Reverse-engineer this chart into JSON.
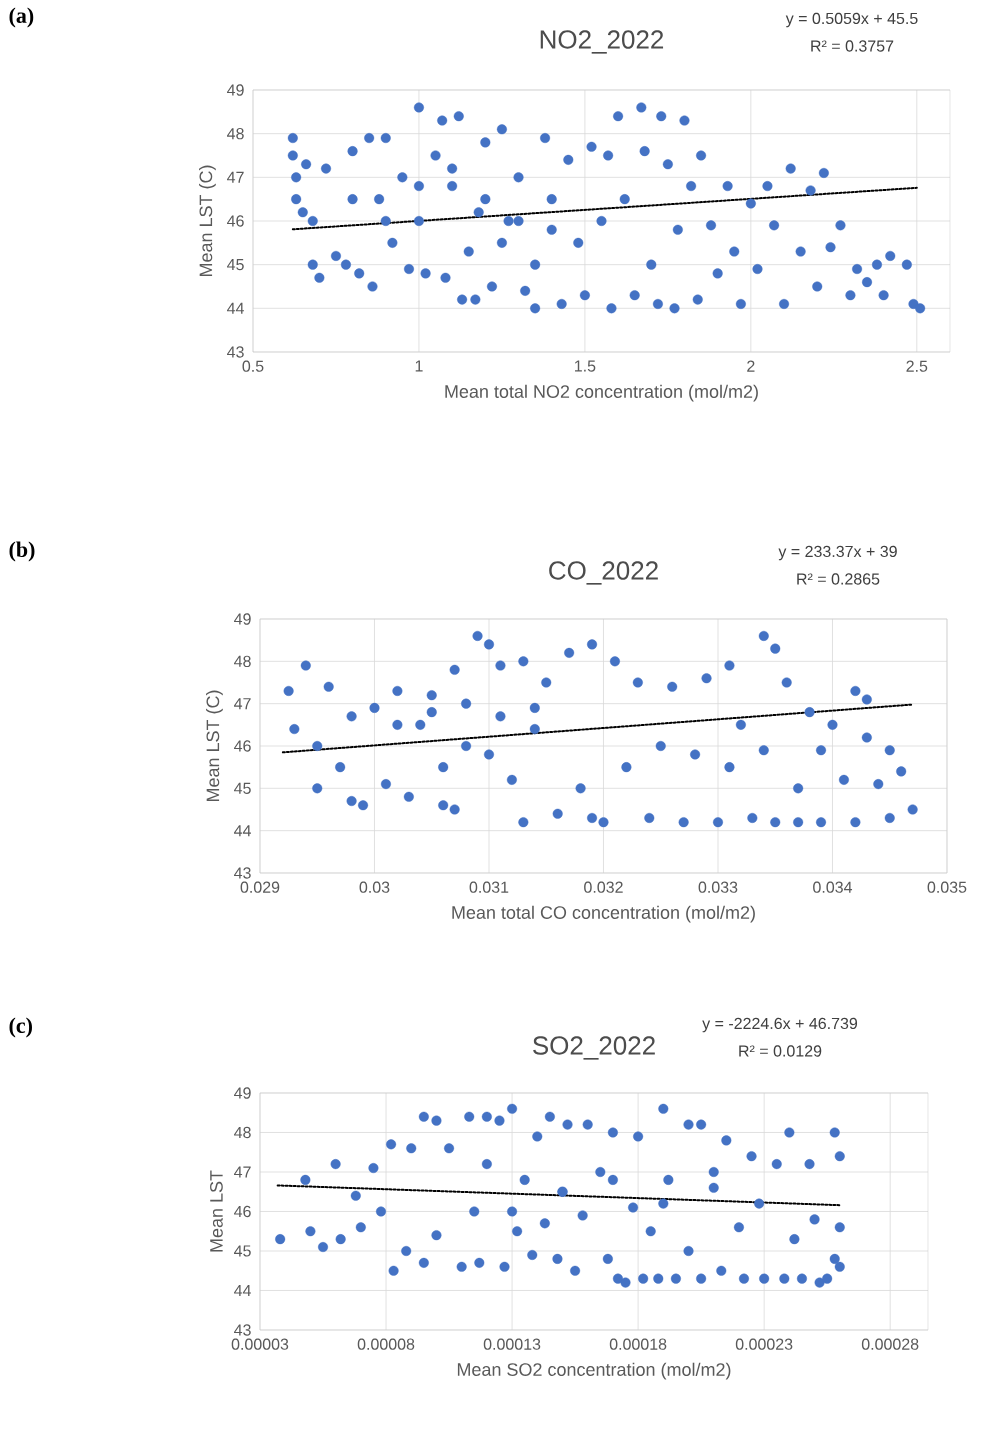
{
  "chart_data": [
    {
      "type": "scatter",
      "title": "NO2_2022",
      "xlabel": "Mean total NO2 concentration (mol/m2)",
      "ylabel": "Mean LST (C)",
      "xlim": [
        0.5,
        2.6
      ],
      "xticks": [
        0.5,
        1,
        1.5,
        2,
        2.5
      ],
      "ylim": [
        43,
        49
      ],
      "yticks": [
        43,
        44,
        45,
        46,
        47,
        48,
        49
      ],
      "grid": true,
      "annotations": [
        "(a)",
        "y = 0.5059x + 45.5",
        "R² = 0.3757"
      ],
      "series": [
        {
          "marker": "circle",
          "color": "#4472c4",
          "x": [
            0.62,
            0.62,
            0.63,
            0.63,
            0.65,
            0.66,
            0.68,
            0.7,
            0.68,
            0.72,
            0.75,
            0.78,
            0.8,
            0.82,
            0.85,
            0.86,
            0.88,
            0.9,
            0.92,
            0.95,
            0.97,
            1.0,
            1.0,
            1.02,
            1.05,
            1.07,
            1.08,
            1.1,
            1.12,
            1.15,
            1.18,
            1.13,
            1.17,
            1.2,
            1.22,
            1.25,
            1.27,
            1.3,
            1.32,
            1.35,
            1.35,
            1.38,
            1.4,
            1.43,
            1.45,
            1.48,
            1.5,
            1.52,
            1.55,
            1.57,
            1.58,
            1.6,
            1.62,
            1.65,
            1.67,
            1.68,
            1.7,
            1.72,
            1.73,
            1.75,
            1.77,
            1.78,
            1.8,
            1.82,
            1.84,
            1.85,
            1.88,
            1.9,
            1.93,
            1.95,
            1.97,
            2.0,
            2.02,
            2.05,
            2.07,
            2.1,
            2.12,
            2.15,
            2.18,
            2.2,
            2.22,
            2.24,
            2.27,
            2.3,
            2.32,
            2.35,
            2.38,
            2.4,
            2.42,
            2.47,
            2.49,
            2.51,
            1.0,
            1.1,
            1.2,
            1.3,
            0.8,
            0.9,
            1.25,
            1.4
          ],
          "values": [
            47.9,
            47.5,
            47.0,
            46.5,
            46.2,
            47.3,
            45.0,
            44.7,
            46.0,
            47.2,
            45.2,
            45.0,
            47.6,
            44.8,
            47.9,
            44.5,
            46.5,
            47.9,
            45.5,
            47.0,
            44.9,
            48.6,
            46.0,
            44.8,
            47.5,
            48.3,
            44.7,
            46.8,
            48.4,
            45.3,
            46.2,
            44.2,
            44.2,
            47.8,
            44.5,
            48.1,
            46.0,
            47.0,
            44.4,
            45.0,
            44.0,
            47.9,
            46.5,
            44.1,
            47.4,
            45.5,
            44.3,
            47.7,
            46.0,
            47.5,
            44.0,
            48.4,
            46.5,
            44.3,
            48.6,
            47.6,
            45.0,
            44.1,
            48.4,
            47.3,
            44.0,
            45.8,
            48.3,
            46.8,
            44.2,
            47.5,
            45.9,
            44.8,
            46.8,
            45.3,
            44.1,
            46.4,
            44.9,
            46.8,
            45.9,
            44.1,
            47.2,
            45.3,
            46.7,
            44.5,
            47.1,
            45.4,
            45.9,
            44.3,
            44.9,
            44.6,
            45.0,
            44.3,
            45.2,
            45.0,
            44.1,
            44.0,
            46.8,
            47.2,
            46.5,
            46.0,
            46.5,
            46.0,
            45.5,
            45.8
          ]
        },
        {
          "type": "line",
          "marker": "none",
          "line_style": "dotted",
          "color": "#000000",
          "x": [
            0.62,
            2.5
          ],
          "values": [
            45.81,
            46.76
          ]
        }
      ]
    },
    {
      "type": "scatter",
      "title": "CO_2022",
      "xlabel": "Mean total CO concentration (mol/m2)",
      "ylabel": "Mean LST (C)",
      "xlim": [
        0.029,
        0.035
      ],
      "xticks": [
        0.029,
        0.03,
        0.031,
        0.032,
        0.033,
        0.034,
        0.035
      ],
      "ylim": [
        43,
        49
      ],
      "yticks": [
        43,
        44,
        45,
        46,
        47,
        48,
        49
      ],
      "grid": true,
      "annotations": [
        "(b)",
        "y = 233.37x + 39",
        "R² = 0.2865"
      ],
      "series": [
        {
          "marker": "circle",
          "color": "#4472c4",
          "x": [
            0.02925,
            0.0293,
            0.0294,
            0.0295,
            0.0295,
            0.0296,
            0.0297,
            0.0298,
            0.0298,
            0.0299,
            0.03,
            0.0301,
            0.0302,
            0.0303,
            0.0304,
            0.0305,
            0.0306,
            0.0306,
            0.0307,
            0.0307,
            0.0308,
            0.0309,
            0.031,
            0.031,
            0.0311,
            0.0312,
            0.0313,
            0.0313,
            0.0314,
            0.0315,
            0.0316,
            0.0317,
            0.0318,
            0.0319,
            0.0319,
            0.032,
            0.0321,
            0.0322,
            0.0323,
            0.0324,
            0.0325,
            0.0326,
            0.0327,
            0.0328,
            0.0329,
            0.033,
            0.0331,
            0.0331,
            0.0332,
            0.0333,
            0.0334,
            0.0334,
            0.0335,
            0.0335,
            0.0336,
            0.0337,
            0.0337,
            0.0338,
            0.0339,
            0.0339,
            0.034,
            0.0341,
            0.0342,
            0.0342,
            0.0343,
            0.0343,
            0.0344,
            0.0345,
            0.0345,
            0.0346,
            0.0347,
            0.0305,
            0.0308,
            0.0311,
            0.0314,
            0.0302
          ],
          "values": [
            47.3,
            46.4,
            47.9,
            46.0,
            45.0,
            47.4,
            45.5,
            44.7,
            46.7,
            44.6,
            46.9,
            45.1,
            47.3,
            44.8,
            46.5,
            47.2,
            45.5,
            44.6,
            47.8,
            44.5,
            46.0,
            48.6,
            48.4,
            45.8,
            47.9,
            45.2,
            44.2,
            48.0,
            46.4,
            47.5,
            44.4,
            48.2,
            45.0,
            48.4,
            44.3,
            44.2,
            48.0,
            45.5,
            47.5,
            44.3,
            46.0,
            47.4,
            44.2,
            45.8,
            47.6,
            44.2,
            47.9,
            45.5,
            46.5,
            44.3,
            48.6,
            45.9,
            48.3,
            44.2,
            47.5,
            45.0,
            44.2,
            46.8,
            45.9,
            44.2,
            46.5,
            45.2,
            47.3,
            44.2,
            46.2,
            47.1,
            45.1,
            44.3,
            45.9,
            45.4,
            44.5,
            46.8,
            47.0,
            46.7,
            46.9,
            46.5
          ]
        },
        {
          "type": "line",
          "marker": "none",
          "line_style": "dotted",
          "color": "#000000",
          "x": [
            0.0292,
            0.0347
          ],
          "values": [
            45.85,
            46.98
          ]
        }
      ]
    },
    {
      "type": "scatter",
      "title": "SO2_2022",
      "xlabel": "Mean SO2 concentration (mol/m2)",
      "ylabel": "Mean LST",
      "xlim": [
        3e-05,
        0.000295
      ],
      "xticks": [
        {
          "value": 3e-05,
          "label": "0.00003"
        },
        {
          "value": 8e-05,
          "label": "0.00008"
        },
        {
          "value": 0.00013,
          "label": "0.00013"
        },
        {
          "value": 0.00018,
          "label": "0.00018"
        },
        {
          "value": 0.00023,
          "label": "0.00023"
        },
        {
          "value": 0.00028,
          "label": "0.00028"
        }
      ],
      "ylim": [
        43,
        49
      ],
      "yticks": [
        43,
        44,
        45,
        46,
        47,
        48,
        49
      ],
      "grid": true,
      "annotations": [
        "(c)",
        "y = -2224.6x + 46.739",
        "R² = 0.0129"
      ],
      "series": [
        {
          "marker": "circle",
          "color": "#4472c4",
          "x": [
            3.8e-05,
            4.8e-05,
            5e-05,
            5.5e-05,
            6e-05,
            6.2e-05,
            6.8e-05,
            7e-05,
            7.5e-05,
            7.8e-05,
            8.2e-05,
            8.3e-05,
            8.8e-05,
            9e-05,
            9.5e-05,
            9.5e-05,
            0.0001,
            0.0001,
            0.000105,
            0.00011,
            0.000113,
            0.000115,
            0.000117,
            0.00012,
            0.00012,
            0.000125,
            0.000127,
            0.00013,
            0.000132,
            0.000135,
            0.000138,
            0.00014,
            0.000143,
            0.000145,
            0.000148,
            0.00015,
            0.000152,
            0.000155,
            0.000158,
            0.00016,
            0.000165,
            0.000168,
            0.00017,
            0.000172,
            0.000175,
            0.000178,
            0.00018,
            0.000182,
            0.000185,
            0.000188,
            0.00019,
            0.000192,
            0.000195,
            0.0002,
            0.0002,
            0.000205,
            0.000205,
            0.00021,
            0.000213,
            0.000215,
            0.00022,
            0.000222,
            0.000225,
            0.000228,
            0.00023,
            0.000235,
            0.000238,
            0.00024,
            0.000242,
            0.000245,
            0.000248,
            0.00025,
            0.000252,
            0.000255,
            0.000258,
            0.000258,
            0.00026,
            0.00026,
            0.00026,
            0.00015,
            0.00017,
            0.00019,
            0.00021,
            0.00013
          ],
          "values": [
            45.3,
            46.8,
            45.5,
            45.1,
            47.2,
            45.3,
            46.4,
            45.6,
            47.1,
            46.0,
            47.7,
            44.5,
            45.0,
            47.6,
            48.4,
            44.7,
            48.3,
            45.4,
            47.6,
            44.6,
            48.4,
            46.0,
            44.7,
            48.4,
            47.2,
            48.3,
            44.6,
            48.6,
            45.5,
            46.8,
            44.9,
            47.9,
            45.7,
            48.4,
            44.8,
            46.5,
            48.2,
            44.5,
            45.9,
            48.2,
            47.0,
            44.8,
            48.0,
            44.3,
            44.2,
            46.1,
            47.9,
            44.3,
            45.5,
            44.3,
            48.6,
            46.8,
            44.3,
            48.2,
            45.0,
            48.2,
            44.3,
            47.0,
            44.5,
            47.8,
            45.6,
            44.3,
            47.4,
            46.2,
            44.3,
            47.2,
            44.3,
            48.0,
            45.3,
            44.3,
            47.2,
            45.8,
            44.2,
            44.3,
            48.0,
            44.8,
            47.4,
            45.6,
            44.6,
            46.5,
            46.8,
            46.2,
            46.6,
            46.0
          ]
        },
        {
          "type": "line",
          "marker": "none",
          "line_style": "dotted",
          "color": "#000000",
          "x": [
            3.7e-05,
            0.00026
          ],
          "values": [
            46.66,
            46.16
          ]
        }
      ]
    }
  ]
}
